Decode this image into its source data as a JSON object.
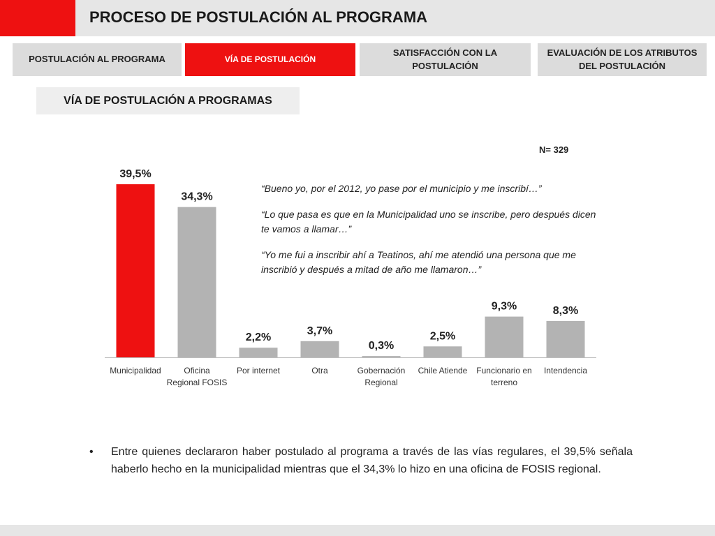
{
  "header": {
    "title": "PROCESO DE POSTULACIÓN AL PROGRAMA"
  },
  "tabs": [
    {
      "label": "POSTULACIÓN AL PROGRAMA",
      "active": false
    },
    {
      "label": "VÍA DE POSTULACIÓN",
      "active": true
    },
    {
      "label": "SATISFACCIÓN CON LA POSTULACIÓN",
      "active": false
    },
    {
      "label": "EVALUACIÓN DE LOS ATRIBUTOS DEL POSTULACIÓN",
      "active": false
    }
  ],
  "section": {
    "title": "VÍA DE POSTULACIÓN A PROGRAMAS"
  },
  "sample": {
    "label": "N= 329"
  },
  "quotes": [
    "“Bueno yo, por el 2012, yo pase por el municipio y me inscribí…”",
    "“Lo que pasa es que en la Municipalidad uno se inscribe, pero después dicen te vamos a llamar…”",
    "“Yo me fui a inscribir ahí a Teatinos, ahí me atendió una persona que me inscribió y después a mitad de año me llamaron…”"
  ],
  "bullet": {
    "symbol": "•",
    "text": "Entre quienes declararon haber postulado al programa a través de las vías regulares, el 39,5% señala haberlo hecho en la municipalidad mientras que el 34,3% lo hizo en una oficina de FOSIS regional."
  },
  "colors": {
    "accent": "#ee1111",
    "bar": "#b3b3b3",
    "highlight_bar": "#ee1111"
  },
  "chart_data": {
    "type": "bar",
    "categories": [
      [
        "Municipalidad"
      ],
      [
        "Oficina",
        "Regional FOSIS"
      ],
      [
        "Por internet"
      ],
      [
        "Otra"
      ],
      [
        "Gobernación",
        "Regional"
      ],
      [
        "Chile Atiende"
      ],
      [
        "Funcionario en",
        "terreno"
      ],
      [
        "Intendencia"
      ]
    ],
    "values": [
      39.5,
      34.3,
      2.2,
      3.7,
      0.3,
      2.5,
      9.3,
      8.3
    ],
    "data_labels": [
      "39,5%",
      "34,3%",
      "2,2%",
      "3,7%",
      "0,3%",
      "2,5%",
      "9,3%",
      "8,3%"
    ],
    "highlight_index": 0,
    "ylim": [
      0,
      40
    ],
    "grid": false,
    "legend": "none"
  }
}
